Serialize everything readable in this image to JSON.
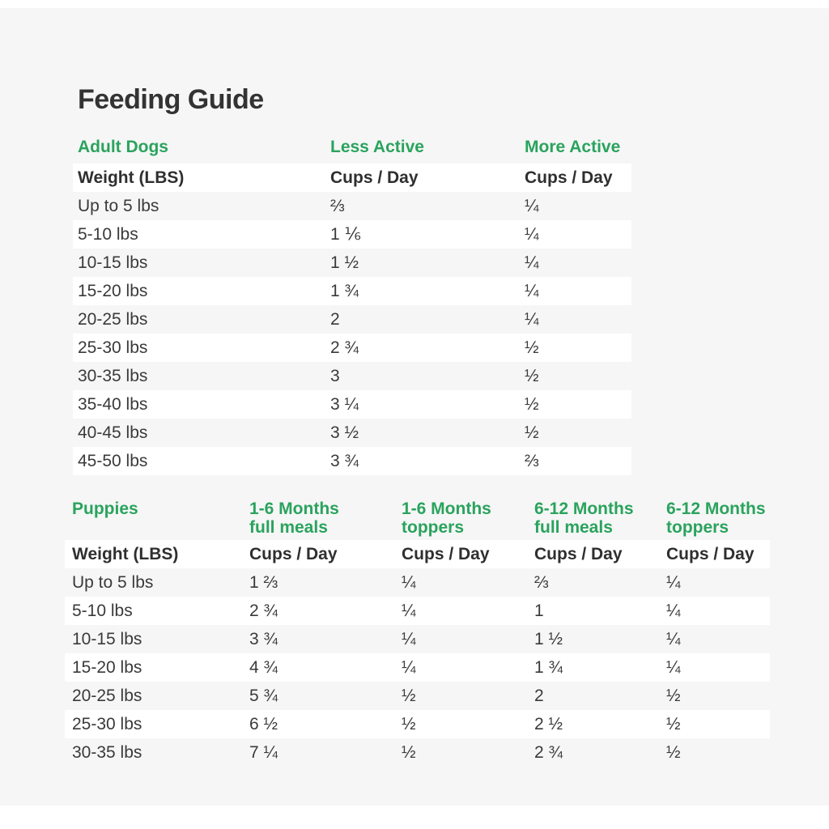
{
  "title": "Feeding Guide",
  "colors": {
    "accent_green": "#2aa35d",
    "text_dark": "#333333",
    "panel_background": "#f6f6f6",
    "stripe_white": "#ffffff"
  },
  "adult": {
    "section_label": "Adult Dogs",
    "columns": [
      "Less Active",
      "More Active"
    ],
    "subheaders": [
      "Weight (LBS)",
      "Cups / Day",
      "Cups / Day"
    ],
    "rows": [
      {
        "weight": "Up to 5 lbs",
        "less_active": "⅔",
        "more_active": "¼"
      },
      {
        "weight": "5-10 lbs",
        "less_active": "1 ⅙",
        "more_active": "¼"
      },
      {
        "weight": "10-15 lbs",
        "less_active": "1 ½",
        "more_active": "¼"
      },
      {
        "weight": "15-20 lbs",
        "less_active": "1 ¾",
        "more_active": "¼"
      },
      {
        "weight": "20-25 lbs",
        "less_active": "2",
        "more_active": "¼"
      },
      {
        "weight": "25-30 lbs",
        "less_active": "2 ¾",
        "more_active": "½"
      },
      {
        "weight": "30-35 lbs",
        "less_active": "3",
        "more_active": "½"
      },
      {
        "weight": "35-40 lbs",
        "less_active": "3 ¼",
        "more_active": "½"
      },
      {
        "weight": "40-45 lbs",
        "less_active": "3 ½",
        "more_active": "½"
      },
      {
        "weight": "45-50 lbs",
        "less_active": "3 ¾",
        "more_active": "⅔"
      }
    ]
  },
  "puppies": {
    "section_label": "Puppies",
    "columns": [
      {
        "line1": "1-6 Months",
        "line2": "full meals"
      },
      {
        "line1": "1-6 Months",
        "line2": "toppers"
      },
      {
        "line1": "6-12 Months",
        "line2": "full meals"
      },
      {
        "line1": "6-12 Months",
        "line2": "toppers"
      }
    ],
    "subheaders": [
      "Weight (LBS)",
      "Cups / Day",
      "Cups / Day",
      "Cups / Day",
      "Cups / Day"
    ],
    "rows": [
      {
        "weight": "Up to 5 lbs",
        "m16_full": "1 ⅔",
        "m16_top": "¼",
        "m612_full": "⅔",
        "m612_top": "¼"
      },
      {
        "weight": "5-10 lbs",
        "m16_full": "2 ¾",
        "m16_top": "¼",
        "m612_full": "1",
        "m612_top": "¼"
      },
      {
        "weight": "10-15 lbs",
        "m16_full": "3 ¾",
        "m16_top": "¼",
        "m612_full": "1 ½",
        "m612_top": "¼"
      },
      {
        "weight": "15-20 lbs",
        "m16_full": "4 ¾",
        "m16_top": "¼",
        "m612_full": "1 ¾",
        "m612_top": "¼"
      },
      {
        "weight": "20-25 lbs",
        "m16_full": "5 ¾",
        "m16_top": "½",
        "m612_full": "2",
        "m612_top": "½"
      },
      {
        "weight": "25-30 lbs",
        "m16_full": "6 ½",
        "m16_top": "½",
        "m612_full": "2 ½",
        "m612_top": "½"
      },
      {
        "weight": "30-35 lbs",
        "m16_full": "7 ¼",
        "m16_top": "½",
        "m612_full": "2 ¾",
        "m612_top": "½"
      }
    ]
  }
}
